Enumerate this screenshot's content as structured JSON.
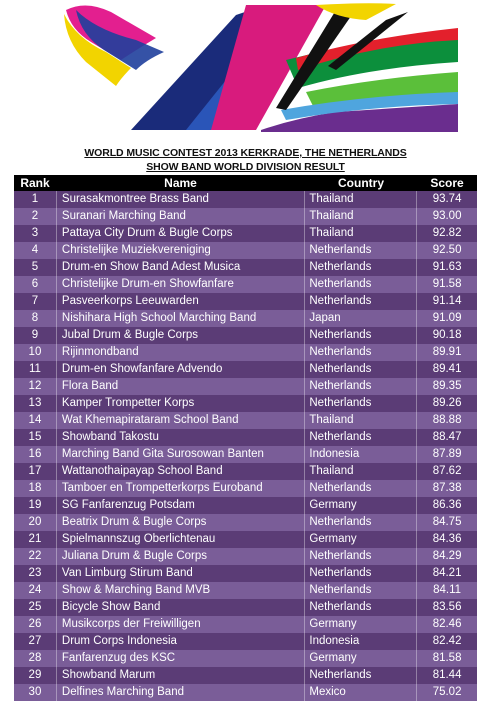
{
  "title_line1": "WORLD MUSIC CONTEST 2013 KERKRADE, THE NETHERLANDS",
  "title_line2": "SHOW BAND WORLD DIVISION RESULT",
  "headers": {
    "rank": "Rank",
    "name": "Name",
    "country": "Country",
    "score": "Score"
  },
  "rows": [
    {
      "rank": "1",
      "name": "Surasakmontree Brass Band",
      "country": "Thailand",
      "score": "93.74"
    },
    {
      "rank": "2",
      "name": "Suranari Marching Band",
      "country": "Thailand",
      "score": "93.00"
    },
    {
      "rank": "3",
      "name": "Pattaya City Drum & Bugle Corps",
      "country": "Thailand",
      "score": "92.82"
    },
    {
      "rank": "4",
      "name": "Christelijke Muziekvereniging",
      "country": "Netherlands",
      "score": "92.50"
    },
    {
      "rank": "5",
      "name": "Drum-en Show Band Adest Musica",
      "country": "Netherlands",
      "score": "91.63"
    },
    {
      "rank": "6",
      "name": "Christelijke Drum-en Showfanfare",
      "country": "Netherlands",
      "score": "91.58"
    },
    {
      "rank": "7",
      "name": "Pasveerkorps Leeuwarden",
      "country": "Netherlands",
      "score": "91.14"
    },
    {
      "rank": "8",
      "name": "Nishihara High School Marching Band",
      "country": "Japan",
      "score": "91.09"
    },
    {
      "rank": "9",
      "name": "Jubal Drum & Bugle Corps",
      "country": "Netherlands",
      "score": "90.18"
    },
    {
      "rank": "10",
      "name": "Rijinmondband",
      "country": "Netherlands",
      "score": "89.91"
    },
    {
      "rank": "11",
      "name": "Drum-en Showfanfare Advendo",
      "country": "Netherlands",
      "score": "89.41"
    },
    {
      "rank": "12",
      "name": "Flora Band",
      "country": "Netherlands",
      "score": "89.35"
    },
    {
      "rank": "13",
      "name": "Kamper Trompetter Korps",
      "country": "Netherlands",
      "score": "89.26"
    },
    {
      "rank": "14",
      "name": "Wat Khemapirataram School Band",
      "country": "Thailand",
      "score": "88.88"
    },
    {
      "rank": "15",
      "name": "Showband Takostu",
      "country": "Netherlands",
      "score": "88.47"
    },
    {
      "rank": "16",
      "name": "Marching Band Gita Surosowan Banten",
      "country": "Indonesia",
      "score": "87.89"
    },
    {
      "rank": "17",
      "name": "Wattanothaipayap School Band",
      "country": "Thailand",
      "score": "87.62"
    },
    {
      "rank": "18",
      "name": "Tamboer en Trompetterkorps Euroband",
      "country": "Netherlands",
      "score": "87.38"
    },
    {
      "rank": "19",
      "name": "SG Fanfarenzug Potsdam",
      "country": "Germany",
      "score": "86.36"
    },
    {
      "rank": "20",
      "name": "Beatrix Drum & Bugle Corps",
      "country": "Netherlands",
      "score": "84.75"
    },
    {
      "rank": "21",
      "name": "Spielmannszug Oberlichtenau",
      "country": "Germany",
      "score": "84.36"
    },
    {
      "rank": "22",
      "name": "Juliana Drum & Bugle Corps",
      "country": "Netherlands",
      "score": "84.29"
    },
    {
      "rank": "23",
      "name": "Van Limburg Stirum Band",
      "country": "Netherlands",
      "score": "84.21"
    },
    {
      "rank": "24",
      "name": "Show & Marching Band MVB",
      "country": "Netherlands",
      "score": "84.11"
    },
    {
      "rank": "25",
      "name": "Bicycle Show Band",
      "country": "Netherlands",
      "score": "83.56"
    },
    {
      "rank": "26",
      "name": "Musikcorps der Freiwilligen",
      "country": "Germany",
      "score": "82.46"
    },
    {
      "rank": "27",
      "name": "Drum Corps Indonesia",
      "country": "Indonesia",
      "score": "82.42"
    },
    {
      "rank": "28",
      "name": "Fanfarenzug des KSC",
      "country": "Germany",
      "score": "81.58"
    },
    {
      "rank": "29",
      "name": "Showband Marum",
      "country": "Netherlands",
      "score": "81.44"
    },
    {
      "rank": "30",
      "name": "Delfines Marching Band",
      "country": "Mexico",
      "score": "75.02"
    }
  ]
}
